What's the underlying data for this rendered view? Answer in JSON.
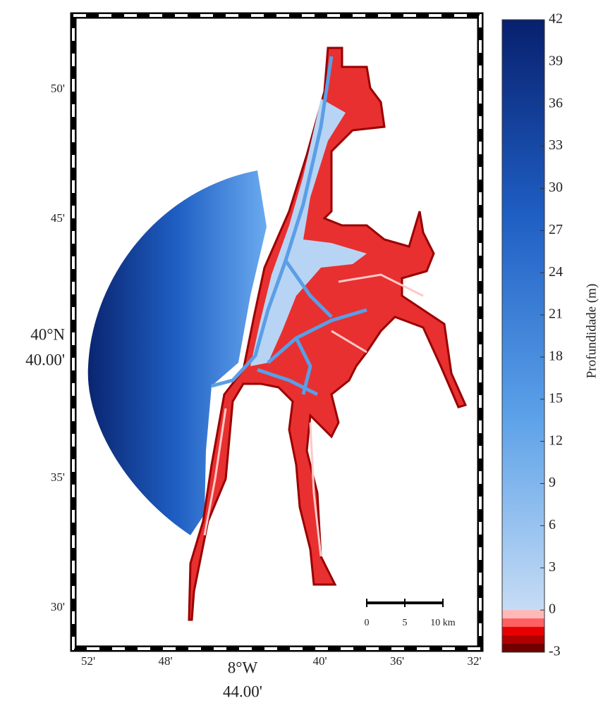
{
  "map": {
    "lat_labels": [
      "50'",
      "45'",
      "40°N",
      "35'",
      "30'"
    ],
    "lat_sublabel": "40.00'",
    "lon_labels": [
      "52'",
      "48'",
      "8°W",
      "40'",
      "36'",
      "32'"
    ],
    "lon_sublabel": "44.00'"
  },
  "colorbar": {
    "label": "Profundidade (m)",
    "lim": [
      -3,
      42
    ],
    "ticks": [
      42,
      39,
      36,
      33,
      30,
      27,
      24,
      21,
      18,
      15,
      12,
      9,
      6,
      3,
      0,
      -3
    ],
    "colors_positive": [
      "#c6dcf5",
      "#5aa0e8",
      "#1f5fc4",
      "#08206e"
    ],
    "colors_negative": [
      "#ffb8b8",
      "#ff6060",
      "#e80000",
      "#b00000",
      "#700000"
    ]
  },
  "scalebar": {
    "labels": [
      "0",
      "5",
      "10 km"
    ]
  }
}
